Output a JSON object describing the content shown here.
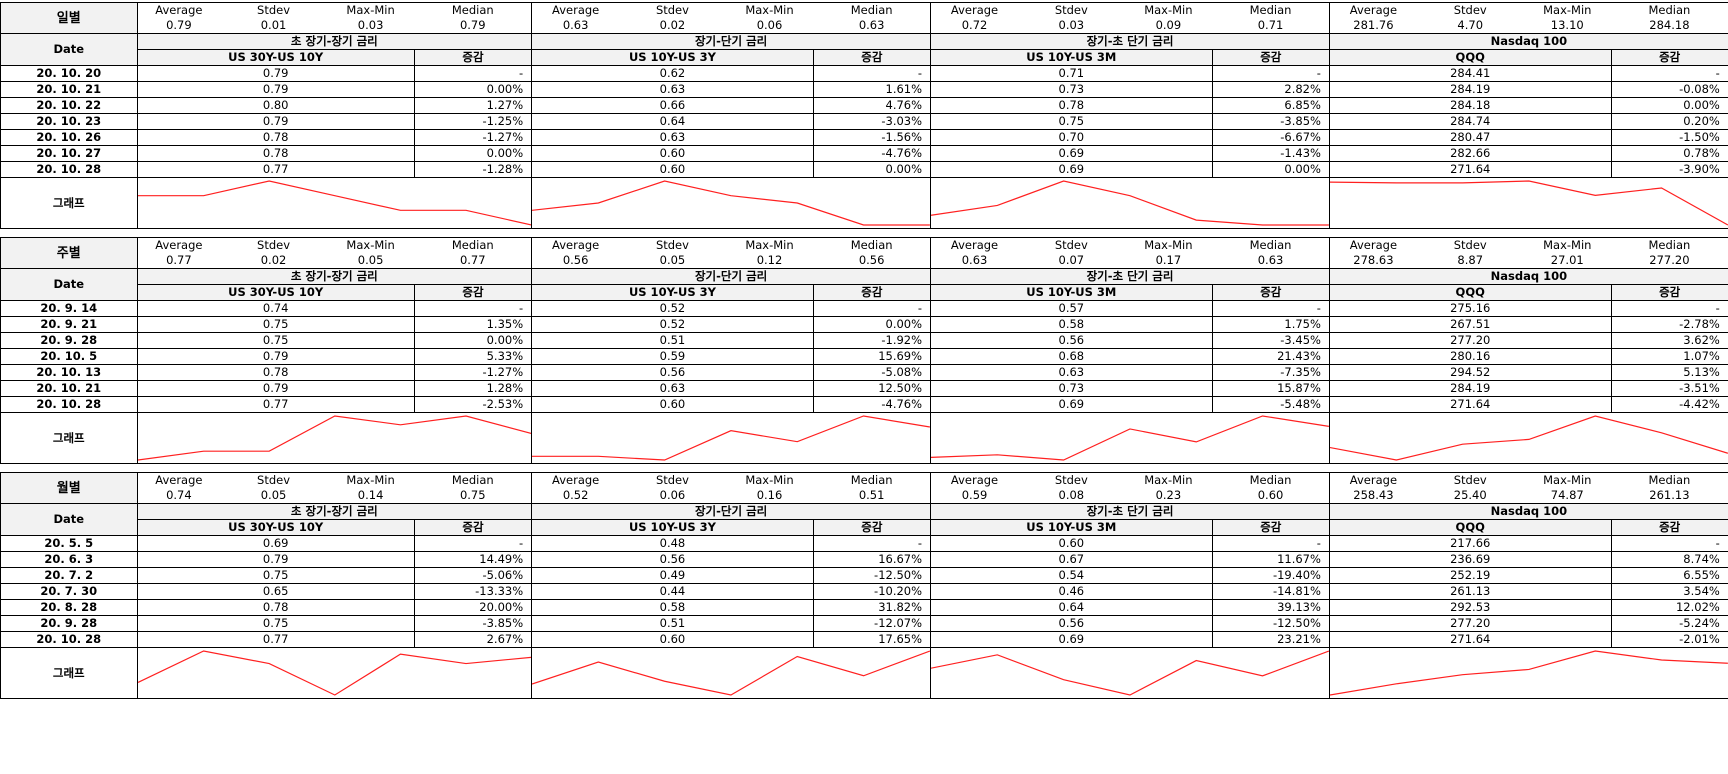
{
  "headers": {
    "date": "Date",
    "graph": "그래프",
    "change": "증감",
    "stats": [
      "Average",
      "Stdev",
      "Max-Min",
      "Median"
    ]
  },
  "groups": [
    {
      "title": "초 장기-장기 금리",
      "series": "US 30Y-US 10Y"
    },
    {
      "title": "장기-단기 금리",
      "series": "US 10Y-US 3Y"
    },
    {
      "title": "장기-초 단기 금리",
      "series": "US 10Y-US 3M"
    },
    {
      "title": "Nasdaq 100",
      "series": "QQQ"
    }
  ],
  "sections": [
    {
      "label": "일별",
      "stats": [
        [
          "0.79",
          "0.01",
          "0.03",
          "0.79"
        ],
        [
          "0.63",
          "0.02",
          "0.06",
          "0.63"
        ],
        [
          "0.72",
          "0.03",
          "0.09",
          "0.71"
        ],
        [
          "281.76",
          "4.70",
          "13.10",
          "284.18"
        ]
      ],
      "rows": [
        {
          "date": "20. 10. 20",
          "cells": [
            [
              "0.79",
              "-"
            ],
            [
              "0.62",
              "-"
            ],
            [
              "0.71",
              "-"
            ],
            [
              "284.41",
              "-"
            ]
          ]
        },
        {
          "date": "20. 10. 21",
          "cells": [
            [
              "0.79",
              "0.00%"
            ],
            [
              "0.63",
              "1.61%"
            ],
            [
              "0.73",
              "2.82%"
            ],
            [
              "284.19",
              "-0.08%"
            ]
          ]
        },
        {
          "date": "20. 10. 22",
          "cells": [
            [
              "0.80",
              "1.27%"
            ],
            [
              "0.66",
              "4.76%"
            ],
            [
              "0.78",
              "6.85%"
            ],
            [
              "284.18",
              "0.00%"
            ]
          ]
        },
        {
          "date": "20. 10. 23",
          "cells": [
            [
              "0.79",
              "-1.25%"
            ],
            [
              "0.64",
              "-3.03%"
            ],
            [
              "0.75",
              "-3.85%"
            ],
            [
              "284.74",
              "0.20%"
            ]
          ]
        },
        {
          "date": "20. 10. 26",
          "cells": [
            [
              "0.78",
              "-1.27%"
            ],
            [
              "0.63",
              "-1.56%"
            ],
            [
              "0.70",
              "-6.67%"
            ],
            [
              "280.47",
              "-1.50%"
            ]
          ]
        },
        {
          "date": "20. 10. 27",
          "cells": [
            [
              "0.78",
              "0.00%"
            ],
            [
              "0.60",
              "-4.76%"
            ],
            [
              "0.69",
              "-1.43%"
            ],
            [
              "282.66",
              "0.78%"
            ]
          ]
        },
        {
          "date": "20. 10. 28",
          "cells": [
            [
              "0.77",
              "-1.28%"
            ],
            [
              "0.60",
              "0.00%"
            ],
            [
              "0.69",
              "0.00%"
            ],
            [
              "271.64",
              "-3.90%"
            ]
          ]
        }
      ]
    },
    {
      "label": "주별",
      "stats": [
        [
          "0.77",
          "0.02",
          "0.05",
          "0.77"
        ],
        [
          "0.56",
          "0.05",
          "0.12",
          "0.56"
        ],
        [
          "0.63",
          "0.07",
          "0.17",
          "0.63"
        ],
        [
          "278.63",
          "8.87",
          "27.01",
          "277.20"
        ]
      ],
      "rows": [
        {
          "date": "20. 9. 14",
          "cells": [
            [
              "0.74",
              "-"
            ],
            [
              "0.52",
              "-"
            ],
            [
              "0.57",
              "-"
            ],
            [
              "275.16",
              "-"
            ]
          ]
        },
        {
          "date": "20. 9. 21",
          "cells": [
            [
              "0.75",
              "1.35%"
            ],
            [
              "0.52",
              "0.00%"
            ],
            [
              "0.58",
              "1.75%"
            ],
            [
              "267.51",
              "-2.78%"
            ]
          ]
        },
        {
          "date": "20. 9. 28",
          "cells": [
            [
              "0.75",
              "0.00%"
            ],
            [
              "0.51",
              "-1.92%"
            ],
            [
              "0.56",
              "-3.45%"
            ],
            [
              "277.20",
              "3.62%"
            ]
          ]
        },
        {
          "date": "20. 10. 5",
          "cells": [
            [
              "0.79",
              "5.33%"
            ],
            [
              "0.59",
              "15.69%"
            ],
            [
              "0.68",
              "21.43%"
            ],
            [
              "280.16",
              "1.07%"
            ]
          ]
        },
        {
          "date": "20. 10. 13",
          "cells": [
            [
              "0.78",
              "-1.27%"
            ],
            [
              "0.56",
              "-5.08%"
            ],
            [
              "0.63",
              "-7.35%"
            ],
            [
              "294.52",
              "5.13%"
            ]
          ]
        },
        {
          "date": "20. 10. 21",
          "cells": [
            [
              "0.79",
              "1.28%"
            ],
            [
              "0.63",
              "12.50%"
            ],
            [
              "0.73",
              "15.87%"
            ],
            [
              "284.19",
              "-3.51%"
            ]
          ]
        },
        {
          "date": "20. 10. 28",
          "cells": [
            [
              "0.77",
              "-2.53%"
            ],
            [
              "0.60",
              "-4.76%"
            ],
            [
              "0.69",
              "-5.48%"
            ],
            [
              "271.64",
              "-4.42%"
            ]
          ]
        }
      ]
    },
    {
      "label": "월별",
      "stats": [
        [
          "0.74",
          "0.05",
          "0.14",
          "0.75"
        ],
        [
          "0.52",
          "0.06",
          "0.16",
          "0.51"
        ],
        [
          "0.59",
          "0.08",
          "0.23",
          "0.60"
        ],
        [
          "258.43",
          "25.40",
          "74.87",
          "261.13"
        ]
      ],
      "rows": [
        {
          "date": "20. 5. 5",
          "cells": [
            [
              "0.69",
              "-"
            ],
            [
              "0.48",
              "-"
            ],
            [
              "0.60",
              "-"
            ],
            [
              "217.66",
              "-"
            ]
          ]
        },
        {
          "date": "20. 6. 3",
          "cells": [
            [
              "0.79",
              "14.49%"
            ],
            [
              "0.56",
              "16.67%"
            ],
            [
              "0.67",
              "11.67%"
            ],
            [
              "236.69",
              "8.74%"
            ]
          ]
        },
        {
          "date": "20. 7. 2",
          "cells": [
            [
              "0.75",
              "-5.06%"
            ],
            [
              "0.49",
              "-12.50%"
            ],
            [
              "0.54",
              "-19.40%"
            ],
            [
              "252.19",
              "6.55%"
            ]
          ]
        },
        {
          "date": "20. 7. 30",
          "cells": [
            [
              "0.65",
              "-13.33%"
            ],
            [
              "0.44",
              "-10.20%"
            ],
            [
              "0.46",
              "-14.81%"
            ],
            [
              "261.13",
              "3.54%"
            ]
          ]
        },
        {
          "date": "20. 8. 28",
          "cells": [
            [
              "0.78",
              "20.00%"
            ],
            [
              "0.58",
              "31.82%"
            ],
            [
              "0.64",
              "39.13%"
            ],
            [
              "292.53",
              "12.02%"
            ]
          ]
        },
        {
          "date": "20. 9. 28",
          "cells": [
            [
              "0.75",
              "-3.85%"
            ],
            [
              "0.51",
              "-12.07%"
            ],
            [
              "0.56",
              "-12.50%"
            ],
            [
              "277.20",
              "-5.24%"
            ]
          ]
        },
        {
          "date": "20. 10. 28",
          "cells": [
            [
              "0.77",
              "2.67%"
            ],
            [
              "0.60",
              "17.65%"
            ],
            [
              "0.69",
              "23.21%"
            ],
            [
              "271.64",
              "-2.01%"
            ]
          ]
        }
      ]
    }
  ],
  "colors": {
    "line": "#ff2020",
    "header_bg": "#f2f2f2",
    "border": "#000000"
  }
}
